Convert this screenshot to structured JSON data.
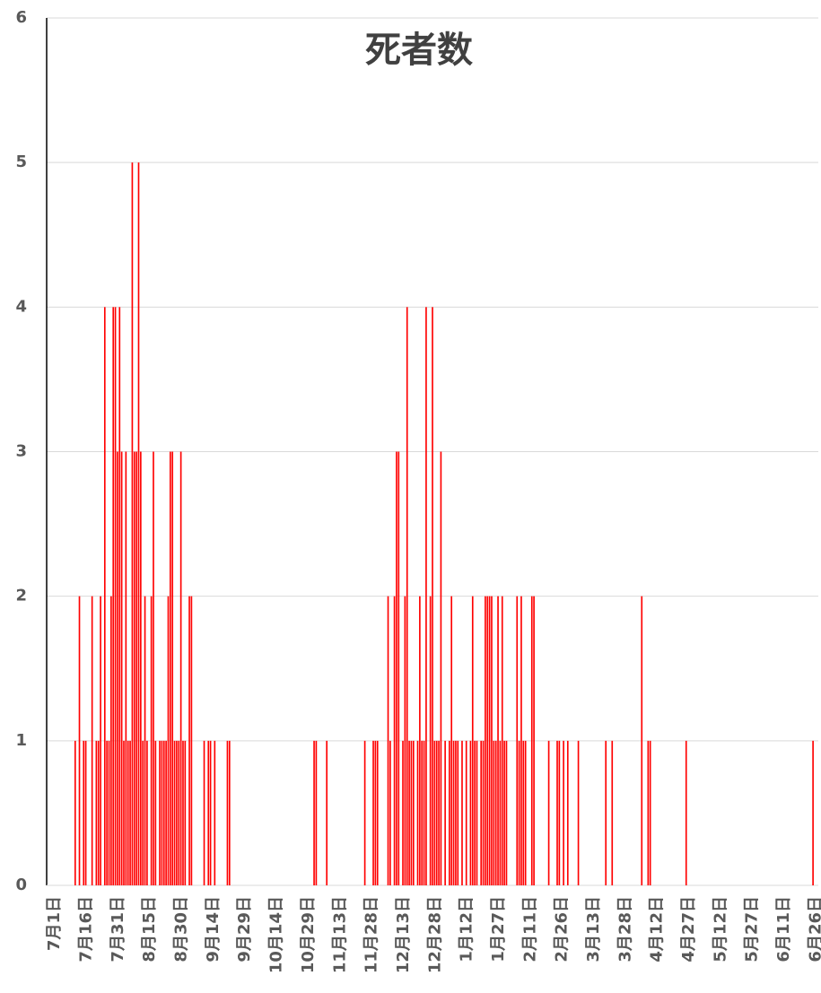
{
  "chart_data": {
    "type": "bar",
    "title": "死者数",
    "color": "#ff0000",
    "grid": true,
    "ylim": [
      0,
      6
    ],
    "yticks": [
      0,
      1,
      2,
      3,
      4,
      5,
      6
    ],
    "categories": [
      "7月1日",
      null,
      null,
      null,
      null,
      null,
      null,
      null,
      null,
      null,
      null,
      null,
      null,
      null,
      null,
      "7月16日",
      null,
      null,
      null,
      null,
      null,
      null,
      null,
      null,
      null,
      null,
      null,
      null,
      null,
      null,
      "7月31日",
      null,
      null,
      null,
      null,
      null,
      null,
      null,
      null,
      null,
      null,
      null,
      null,
      null,
      null,
      "8月15日",
      null,
      null,
      null,
      null,
      null,
      null,
      null,
      null,
      null,
      null,
      null,
      null,
      null,
      null,
      "8月30日",
      null,
      null,
      null,
      null,
      null,
      null,
      null,
      null,
      null,
      null,
      null,
      null,
      null,
      null,
      "9月14日",
      null,
      null,
      null,
      null,
      null,
      null,
      null,
      null,
      null,
      null,
      null,
      null,
      null,
      null,
      "9月29日",
      null,
      null,
      null,
      null,
      null,
      null,
      null,
      null,
      null,
      null,
      null,
      null,
      null,
      null,
      "10月14日",
      null,
      null,
      null,
      null,
      null,
      null,
      null,
      null,
      null,
      null,
      null,
      null,
      null,
      null,
      "10月29日",
      null,
      null,
      null,
      null,
      null,
      null,
      null,
      null,
      null,
      null,
      null,
      null,
      null,
      null,
      "11月13日",
      null,
      null,
      null,
      null,
      null,
      null,
      null,
      null,
      null,
      null,
      null,
      null,
      null,
      null,
      "11月28日",
      null,
      null,
      null,
      null,
      null,
      null,
      null,
      null,
      null,
      null,
      null,
      null,
      null,
      null,
      "12月13日",
      null,
      null,
      null,
      null,
      null,
      null,
      null,
      null,
      null,
      null,
      null,
      null,
      null,
      null,
      "12月28日",
      null,
      null,
      null,
      null,
      null,
      null,
      null,
      null,
      null,
      null,
      null,
      null,
      null,
      null,
      "1月12日",
      null,
      null,
      null,
      null,
      null,
      null,
      null,
      null,
      null,
      null,
      null,
      null,
      null,
      null,
      "1月27日",
      null,
      null,
      null,
      null,
      null,
      null,
      null,
      null,
      null,
      null,
      null,
      null,
      null,
      null,
      "2月11日",
      null,
      null,
      null,
      null,
      null,
      null,
      null,
      null,
      null,
      null,
      null,
      null,
      null,
      null,
      "2月26日",
      null,
      null,
      null,
      null,
      null,
      null,
      null,
      null,
      null,
      null,
      null,
      null,
      null,
      null,
      "3月13日",
      null,
      null,
      null,
      null,
      null,
      null,
      null,
      null,
      null,
      null,
      null,
      null,
      null,
      null,
      "3月28日",
      null,
      null,
      null,
      null,
      null,
      null,
      null,
      null,
      null,
      null,
      null,
      null,
      null,
      null,
      "4月12日",
      null,
      null,
      null,
      null,
      null,
      null,
      null,
      null,
      null,
      null,
      null,
      null,
      null,
      null,
      "4月27日",
      null,
      null,
      null,
      null,
      null,
      null,
      null,
      null,
      null,
      null,
      null,
      null,
      null,
      null,
      "5月12日",
      null,
      null,
      null,
      null,
      null,
      null,
      null,
      null,
      null,
      null,
      null,
      null,
      null,
      null,
      "5月27日",
      null,
      null,
      null,
      null,
      null,
      null,
      null,
      null,
      null,
      null,
      null,
      null,
      null,
      null,
      "6月11日",
      null,
      null,
      null,
      null,
      null,
      null,
      null,
      null,
      null,
      null,
      null,
      null,
      null,
      null,
      "6月26日",
      null,
      null,
      null,
      null
    ],
    "values": [
      0,
      0,
      0,
      0,
      0,
      0,
      0,
      0,
      0,
      0,
      0,
      0,
      0,
      1,
      0,
      2,
      0,
      1,
      1,
      0,
      0,
      2,
      0,
      1,
      1,
      2,
      0,
      4,
      1,
      1,
      2,
      4,
      4,
      3,
      4,
      3,
      1,
      3,
      1,
      1,
      5,
      3,
      3,
      5,
      3,
      1,
      2,
      1,
      0,
      2,
      3,
      1,
      0,
      1,
      1,
      1,
      1,
      2,
      3,
      3,
      1,
      1,
      1,
      3,
      1,
      1,
      0,
      2,
      2,
      0,
      0,
      0,
      0,
      0,
      1,
      0,
      1,
      1,
      0,
      1,
      0,
      0,
      0,
      0,
      0,
      1,
      1,
      0,
      0,
      0,
      0,
      0,
      0,
      0,
      0,
      0,
      0,
      0,
      0,
      0,
      0,
      0,
      0,
      0,
      0,
      0,
      0,
      0,
      0,
      0,
      0,
      0,
      0,
      0,
      0,
      0,
      0,
      0,
      0,
      0,
      0,
      0,
      0,
      0,
      0,
      0,
      1,
      1,
      0,
      0,
      0,
      0,
      1,
      0,
      0,
      0,
      0,
      0,
      0,
      0,
      0,
      0,
      0,
      0,
      0,
      0,
      0,
      0,
      0,
      0,
      1,
      0,
      0,
      0,
      1,
      1,
      1,
      0,
      0,
      0,
      0,
      2,
      1,
      0,
      2,
      3,
      3,
      0,
      1,
      2,
      4,
      1,
      1,
      1,
      0,
      1,
      2,
      1,
      1,
      4,
      0,
      2,
      4,
      1,
      1,
      1,
      3,
      0,
      1,
      0,
      1,
      2,
      1,
      1,
      1,
      0,
      1,
      0,
      1,
      0,
      1,
      2,
      1,
      1,
      0,
      1,
      1,
      2,
      2,
      2,
      2,
      1,
      1,
      2,
      1,
      2,
      1,
      1,
      0,
      0,
      0,
      0,
      2,
      1,
      2,
      1,
      1,
      0,
      0,
      2,
      2,
      0,
      0,
      0,
      0,
      0,
      0,
      1,
      0,
      0,
      0,
      1,
      1,
      0,
      1,
      0,
      1,
      0,
      0,
      0,
      0,
      1,
      0,
      0,
      0,
      0,
      0,
      0,
      0,
      0,
      0,
      0,
      0,
      0,
      1,
      0,
      0,
      1,
      0,
      0,
      0,
      0,
      0,
      0,
      0,
      0,
      0,
      0,
      0,
      0,
      0,
      2,
      0,
      0,
      1,
      1,
      0,
      0,
      0,
      0,
      0,
      0,
      0,
      0,
      0,
      0,
      0,
      0,
      0,
      0,
      0,
      0,
      1,
      0,
      0,
      0,
      0,
      0,
      0,
      0,
      0,
      0,
      0,
      0,
      0,
      0,
      0,
      0,
      0,
      0,
      0,
      0,
      0,
      0,
      0,
      0,
      0,
      0,
      0,
      0,
      0,
      0,
      0,
      0,
      0,
      0,
      0,
      0,
      0,
      0,
      0,
      0,
      0,
      0,
      0,
      0,
      0,
      0,
      0,
      0,
      0,
      0,
      0,
      0,
      0,
      0,
      0,
      0,
      0,
      0,
      0,
      0,
      1,
      0,
      0
    ]
  }
}
